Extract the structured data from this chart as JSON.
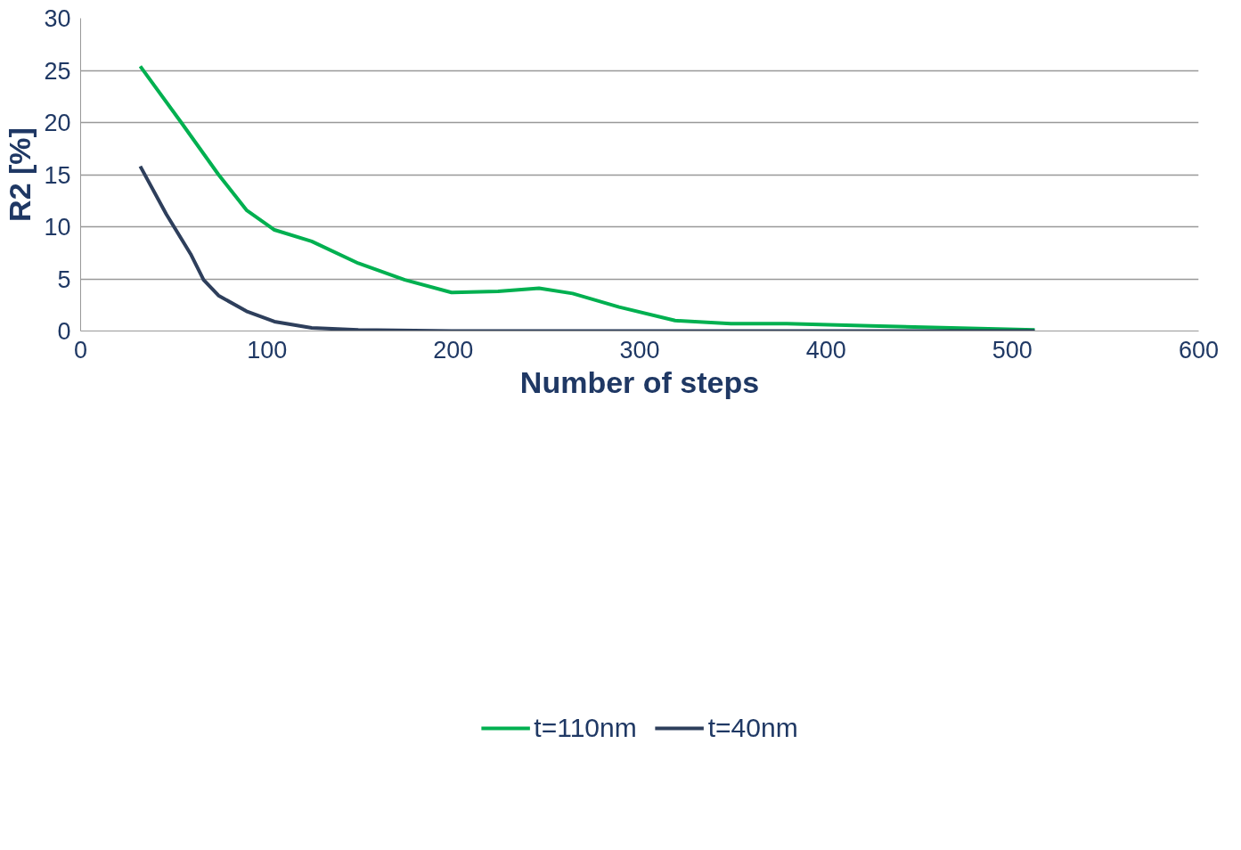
{
  "chart_data": {
    "type": "line",
    "xlabel": "Number of steps",
    "ylabel": "R2 [%]",
    "xlim": [
      0,
      600
    ],
    "xticks": [
      0,
      100,
      200,
      300,
      400,
      500,
      600
    ],
    "ylim": [
      0,
      30
    ],
    "yticks": [
      0,
      5,
      10,
      15,
      20,
      25,
      30
    ],
    "grid": "y",
    "legend": "bottom",
    "marker": "none",
    "line_style": "solid",
    "series": [
      {
        "name": "t=110nm",
        "color": "#00b050",
        "x": [
          32,
          54,
          74,
          89,
          104,
          124,
          149,
          174,
          199,
          224,
          246,
          264,
          289,
          319,
          349,
          379,
          424,
          512
        ],
        "values": [
          25.4,
          20,
          15,
          11.6,
          9.7,
          8.6,
          6.5,
          4.9,
          3.7,
          3.8,
          4.1,
          3.6,
          2.3,
          1.0,
          0.7,
          0.7,
          0.5,
          0.1
        ]
      },
      {
        "name": "t=40nm",
        "color": "#2e3f5c",
        "x": [
          32,
          46,
          59,
          66,
          74,
          89,
          104,
          124,
          149,
          199,
          512
        ],
        "values": [
          15.8,
          11.2,
          7.4,
          4.9,
          3.4,
          1.9,
          0.9,
          0.3,
          0.1,
          0,
          0
        ]
      }
    ]
  }
}
